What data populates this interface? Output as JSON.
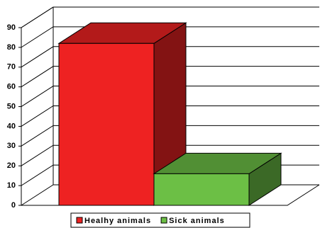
{
  "chart_data": {
    "type": "bar3d",
    "categories": [
      null
    ],
    "series": [
      {
        "name": "Healhy animals",
        "color": "#ee2222",
        "values": [
          82
        ]
      },
      {
        "name": "Sick animals",
        "color": "#6cbf45",
        "values": [
          16
        ]
      }
    ],
    "ylim": [
      0,
      90
    ],
    "yticks": [
      0,
      10,
      20,
      30,
      40,
      50,
      60,
      70,
      80,
      90
    ],
    "grid": true,
    "legend": "bottom"
  }
}
